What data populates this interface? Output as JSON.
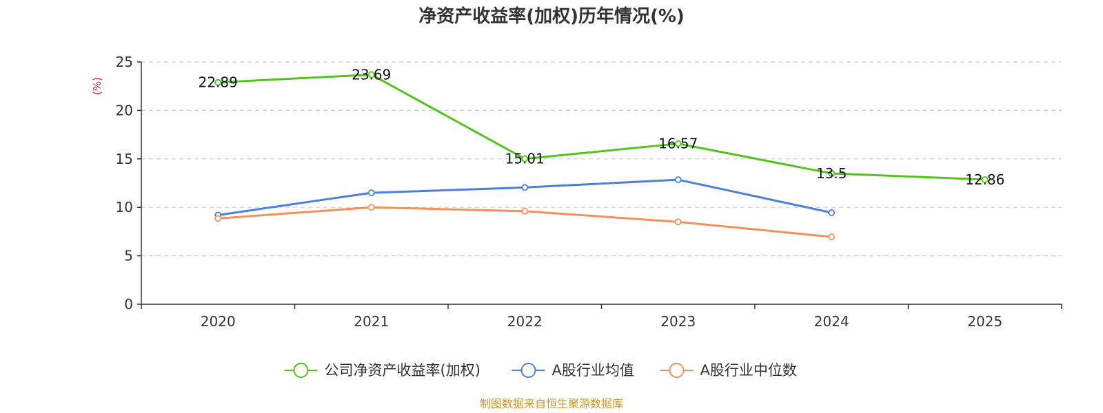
{
  "chart_data": {
    "type": "line",
    "title": "净资产收益率(加权)历年情况(%)",
    "ylabel": "(%)",
    "xlabel": "",
    "categories": [
      "2020",
      "2021",
      "2022",
      "2023",
      "2024",
      "2025"
    ],
    "ylim": [
      0,
      25
    ],
    "yticks": [
      0,
      5,
      10,
      15,
      20,
      25
    ],
    "grid": true,
    "legend_position": "bottom",
    "series": [
      {
        "name": "公司净资产收益率(加权)",
        "color": "#52c41a",
        "values": [
          22.89,
          23.69,
          15.01,
          16.57,
          13.5,
          12.86
        ],
        "labels": [
          "22.89",
          "23.69",
          "15.01",
          "16.57",
          "13.5",
          "12.86"
        ]
      },
      {
        "name": "A股行业均值",
        "color": "#4a7fe0",
        "values": [
          9.2,
          11.5,
          12.05,
          12.85,
          9.45,
          null
        ]
      },
      {
        "name": "A股行业中位数",
        "color": "#f5905a",
        "values": [
          8.85,
          10.0,
          9.6,
          8.5,
          6.95,
          null
        ]
      }
    ],
    "source": "制图数据来自恒生聚源数据库"
  }
}
